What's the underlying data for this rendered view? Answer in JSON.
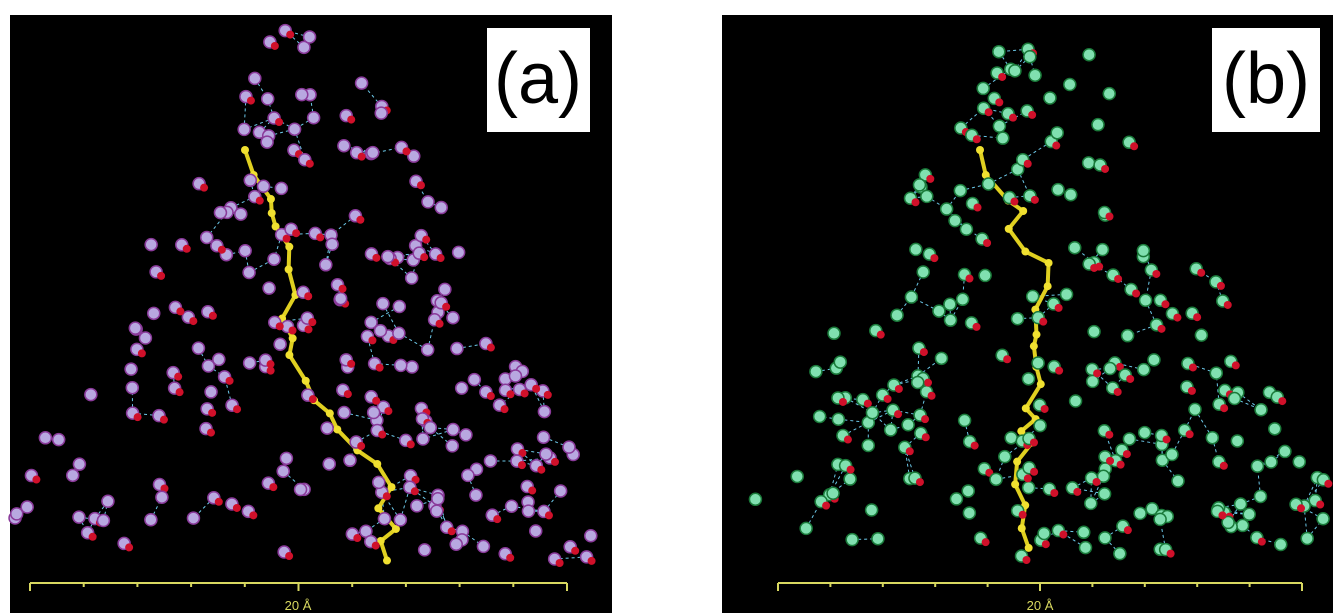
{
  "panels": [
    {
      "label": "(a)",
      "scale_label": "20 Å"
    },
    {
      "label": "(b)",
      "scale_label": "20 Å"
    }
  ]
}
